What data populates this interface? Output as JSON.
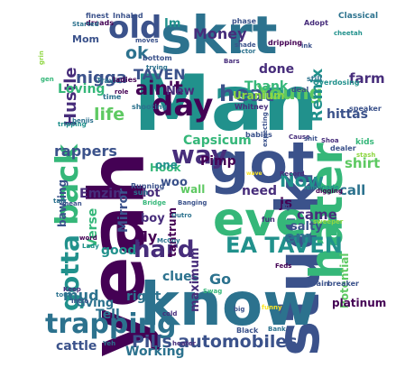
{
  "colors": {
    "background": "#ffffff",
    "palette": [
      "#440154",
      "#3b528b",
      "#21918c",
      "#35b779",
      "#5ec962",
      "#90d743",
      "#fde725",
      "#2c728e",
      "#472d7b",
      "#addc30"
    ]
  },
  "words": [
    {
      "text": "yeah",
      "color": "#440154"
    },
    {
      "text": "Man",
      "color": "#21918c"
    },
    {
      "text": "skrt",
      "color": "#2c728e"
    },
    {
      "text": "stuck",
      "color": "#3b528b"
    },
    {
      "text": "know",
      "color": "#2c728e"
    },
    {
      "text": "got",
      "color": "#3b528b"
    },
    {
      "text": "hater",
      "color": "#35b779"
    },
    {
      "text": "even",
      "color": "#35b779"
    },
    {
      "text": "day",
      "color": "#440154"
    },
    {
      "text": "old",
      "color": "#3b528b"
    },
    {
      "text": "way",
      "color": "#472d7b"
    },
    {
      "text": "back",
      "color": "#35b779"
    },
    {
      "text": "trapping",
      "color": "#2c728e"
    },
    {
      "text": "EA TAVEN",
      "color": "#21918c"
    },
    {
      "text": "hard",
      "color": "#472d7b"
    },
    {
      "text": "gotta",
      "color": "#21918c"
    },
    {
      "text": "Pills automobiles",
      "color": "#3b528b"
    },
    {
      "text": "heat",
      "color": "#3b528b"
    },
    {
      "text": "Young",
      "color": "#5ec962"
    },
    {
      "text": "ain't",
      "color": "#440154"
    },
    {
      "text": "nigga",
      "color": "#3b528b"
    },
    {
      "text": "Now",
      "color": "#21918c"
    },
    {
      "text": "life",
      "color": "#5ec962"
    },
    {
      "text": "ok",
      "color": "#2c728e"
    },
    {
      "text": "Hustle",
      "color": "#472d7b"
    },
    {
      "text": "Money",
      "color": "#472d7b"
    },
    {
      "text": "Remix",
      "color": "#21918c"
    },
    {
      "text": "rappers",
      "color": "#3b528b"
    },
    {
      "text": "mud",
      "color": "#2c728e"
    },
    {
      "text": "em",
      "color": "#2c728e"
    },
    {
      "text": "Tell",
      "color": "#2c728e"
    },
    {
      "text": "salty",
      "color": "#3b528b"
    },
    {
      "text": "Gving",
      "color": "#2c728e"
    },
    {
      "text": "Go",
      "color": "#2c728e"
    },
    {
      "text": "TAVEN",
      "color": "#3b528b"
    },
    {
      "text": "Loving",
      "color": "#35b779"
    },
    {
      "text": "done",
      "color": "#472d7b"
    },
    {
      "text": "Thank",
      "color": "#35b779"
    },
    {
      "text": "Uranium",
      "color": "#90d743"
    },
    {
      "text": "Capsicum",
      "color": "#35b779"
    },
    {
      "text": "Pimp",
      "color": "#440154"
    },
    {
      "text": "woo",
      "color": "#3b528b"
    },
    {
      "text": "lot",
      "color": "#472d7b"
    },
    {
      "text": "wall",
      "color": "#5ec962"
    },
    {
      "text": "need",
      "color": "#472d7b"
    },
    {
      "text": "shirt",
      "color": "#5ec962"
    },
    {
      "text": "call",
      "color": "#2c728e"
    },
    {
      "text": "came",
      "color": "#472d7b"
    },
    {
      "text": "js",
      "color": "#440154"
    },
    {
      "text": "fly",
      "color": "#440154"
    },
    {
      "text": "boy",
      "color": "#472d7b"
    },
    {
      "text": "good",
      "color": "#21918c"
    },
    {
      "text": "right",
      "color": "#2c728e"
    },
    {
      "text": "clues",
      "color": "#2c728e"
    },
    {
      "text": "Working",
      "color": "#2c728e"
    },
    {
      "text": "cattle",
      "color": "#3b528b"
    },
    {
      "text": "bawling",
      "color": "#3b528b"
    },
    {
      "text": "Emzin",
      "color": "#472d7b"
    },
    {
      "text": "Mirror",
      "color": "#3b528b"
    },
    {
      "text": "Verse",
      "color": "#35b779"
    },
    {
      "text": "maximum",
      "color": "#472d7b"
    },
    {
      "text": "tantrum",
      "color": "#440154"
    },
    {
      "text": "Potential",
      "color": "#5ec962"
    },
    {
      "text": "hittas",
      "color": "#3b528b"
    },
    {
      "text": "farm",
      "color": "#472d7b"
    },
    {
      "text": "platinum",
      "color": "#440154"
    },
    {
      "text": "Hook",
      "color": "#35b779"
    },
    {
      "text": "New",
      "color": "#472d7b"
    },
    {
      "text": "one",
      "color": "#21918c"
    },
    {
      "text": "Mom",
      "color": "#3b528b"
    },
    {
      "text": "Im",
      "color": "#21918c"
    },
    {
      "text": "finest",
      "color": "#3b528b"
    },
    {
      "text": "Inhaled",
      "color": "#3b528b"
    },
    {
      "text": "dreads",
      "color": "#440154"
    },
    {
      "text": "Started",
      "color": "#2c728e"
    },
    {
      "text": "moves",
      "color": "#3b528b"
    },
    {
      "text": "phase",
      "color": "#3b528b"
    },
    {
      "text": "Adopt",
      "color": "#472d7b"
    },
    {
      "text": "Classical",
      "color": "#2c728e"
    },
    {
      "text": "cheetah",
      "color": "#21918c"
    },
    {
      "text": "shade",
      "color": "#3b528b"
    },
    {
      "text": "Doctor",
      "color": "#2c728e"
    },
    {
      "text": "dripping",
      "color": "#440154"
    },
    {
      "text": "ink",
      "color": "#3b528b"
    },
    {
      "text": "Bars",
      "color": "#472d7b"
    },
    {
      "text": "still",
      "color": "#2c728e"
    },
    {
      "text": "Overdosing",
      "color": "#21918c"
    },
    {
      "text": "deal",
      "color": "#3b528b"
    },
    {
      "text": "Travis",
      "color": "#2c728e"
    },
    {
      "text": "ladies",
      "color": "#440154"
    },
    {
      "text": "bottom",
      "color": "#3b528b"
    },
    {
      "text": "trying",
      "color": "#2c728e"
    },
    {
      "text": "role",
      "color": "#440154"
    },
    {
      "text": "time",
      "color": "#2c728e"
    },
    {
      "text": "shooting",
      "color": "#2c728e"
    },
    {
      "text": "Whitney",
      "color": "#472d7b"
    },
    {
      "text": "speaker",
      "color": "#3b528b"
    },
    {
      "text": "benjis",
      "color": "#2c728e"
    },
    {
      "text": "tripping",
      "color": "#21918c"
    },
    {
      "text": "Cause",
      "color": "#472d7b"
    },
    {
      "text": "shit",
      "color": "#3b528b"
    },
    {
      "text": "babies",
      "color": "#3b528b"
    },
    {
      "text": "Shoa",
      "color": "#472d7b"
    },
    {
      "text": "dealer",
      "color": "#3b528b"
    },
    {
      "text": "kids",
      "color": "#35b779"
    },
    {
      "text": "stash",
      "color": "#90d743"
    },
    {
      "text": "Running",
      "color": "#3b528b"
    },
    {
      "text": "sun",
      "color": "#2c728e"
    },
    {
      "text": "Bridge",
      "color": "#35b779"
    },
    {
      "text": "Outro",
      "color": "#2c728e"
    },
    {
      "text": "Banging",
      "color": "#3b528b"
    },
    {
      "text": "Record",
      "color": "#472d7b"
    },
    {
      "text": "lemonade",
      "color": "#21918c"
    },
    {
      "text": "digging",
      "color": "#440154"
    },
    {
      "text": "talk",
      "color": "#2c728e"
    },
    {
      "text": "mean",
      "color": "#3b528b"
    },
    {
      "text": "fun",
      "color": "#472d7b"
    },
    {
      "text": "Dj",
      "color": "#3b528b"
    },
    {
      "text": "sweeper",
      "color": "#90d743"
    },
    {
      "text": "McCoy",
      "color": "#2c728e"
    },
    {
      "text": "Lady",
      "color": "#21918c"
    },
    {
      "text": "word",
      "color": "#440154"
    },
    {
      "text": "Keep",
      "color": "#472d7b"
    },
    {
      "text": "tour",
      "color": "#2c728e"
    },
    {
      "text": "Intro",
      "color": "#3b528b"
    },
    {
      "text": "cold",
      "color": "#472d7b"
    },
    {
      "text": "Yeh",
      "color": "#2c728e"
    },
    {
      "text": "heater",
      "color": "#472d7b"
    },
    {
      "text": "brain",
      "color": "#3b528b"
    },
    {
      "text": "breaker",
      "color": "#3b528b"
    },
    {
      "text": "Feds",
      "color": "#440154"
    },
    {
      "text": "big",
      "color": "#3b528b"
    },
    {
      "text": "funny",
      "color": "#fde725"
    },
    {
      "text": "Black",
      "color": "#3b528b"
    },
    {
      "text": "Bank",
      "color": "#2c728e"
    },
    {
      "text": "Swag",
      "color": "#35b779"
    },
    {
      "text": "expecting",
      "color": "#3b528b"
    },
    {
      "text": "wave",
      "color": "#fde725"
    },
    {
      "text": "grin",
      "color": "#90d743"
    },
    {
      "text": "gen",
      "color": "#35b779"
    }
  ]
}
